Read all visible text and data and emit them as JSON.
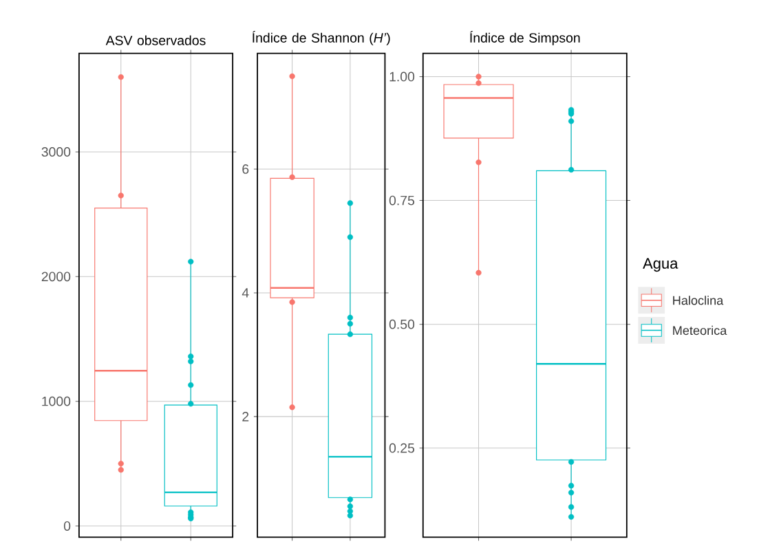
{
  "chart_data": [
    {
      "type": "box",
      "title": "ASV observados",
      "categories": [
        null,
        null
      ],
      "ylim": [
        -90,
        3790
      ],
      "yticks": [
        0,
        1000,
        2000,
        3000
      ],
      "grid": true,
      "tick_labels": "y",
      "marker": "circle",
      "series": [
        {
          "color": "#f8766d",
          "boxes": [
            {
              "low": 450,
              "q1": 845,
              "median": 1245,
              "q3": 2550,
              "high": 3600,
              "outliers": [
                3600,
                2650,
                500,
                450
              ]
            },
            null
          ]
        },
        {
          "color": "#00bfc4",
          "boxes": [
            null,
            {
              "low": 60,
              "q1": 160,
              "median": 270,
              "q3": 970,
              "high": 2120,
              "outliers": [
                2120,
                1360,
                1320,
                1130,
                980,
                110,
                90,
                70,
                60
              ]
            }
          ]
        }
      ]
    },
    {
      "type": "box",
      "title": "Índice de Shannon (*H’*)",
      "categories": [
        null,
        null
      ],
      "ylim": [
        0.05,
        7.87
      ],
      "yticks": [
        2,
        4,
        6
      ],
      "grid": true,
      "tick_labels": "y",
      "marker": "circle",
      "series": [
        {
          "color": "#f8766d",
          "boxes": [
            {
              "low": 2.15,
              "q1": 3.92,
              "median": 4.08,
              "q3": 5.85,
              "high": 7.5,
              "outliers": [
                7.5,
                5.87,
                3.85,
                2.15
              ]
            },
            null
          ]
        },
        {
          "color": "#00bfc4",
          "boxes": [
            null,
            {
              "low": 0.4,
              "q1": 0.69,
              "median": 1.35,
              "q3": 3.33,
              "high": 5.45,
              "outliers": [
                5.45,
                4.9,
                3.6,
                3.5,
                3.33,
                0.66,
                0.55,
                0.47,
                0.4
              ]
            }
          ]
        }
      ]
    },
    {
      "type": "box",
      "title": "Índice de Simpson",
      "categories": [
        null,
        null
      ],
      "ylim": [
        0.07,
        1.047
      ],
      "yticks": [
        {
          "value": 0.25,
          "label": "0.25"
        },
        {
          "value": 0.5,
          "label": "0.50"
        },
        {
          "value": 0.75,
          "label": "0.75"
        },
        {
          "value": 1.0,
          "label": "1.00"
        }
      ],
      "grid": true,
      "tick_labels": "y",
      "marker": "circle",
      "legend": "right",
      "legend_title": "Agua",
      "series": [
        {
          "name": "Haloclina",
          "color": "#f8766d",
          "boxes": [
            {
              "low": 0.6,
              "q1": 0.876,
              "median": 0.957,
              "q3": 0.984,
              "high": 1.0,
              "outliers": [
                1.0,
                0.987,
                0.827,
                0.604
              ]
            },
            null
          ]
        },
        {
          "name": "Meteorica",
          "color": "#00bfc4",
          "boxes": [
            null,
            {
              "low": 0.11,
              "q1": 0.226,
              "median": 0.42,
              "q3": 0.81,
              "high": 0.93,
              "outliers": [
                0.933,
                0.929,
                0.925,
                0.91,
                0.812,
                0.222,
                0.174,
                0.16,
                0.131,
                0.111
              ]
            }
          ]
        }
      ]
    }
  ]
}
